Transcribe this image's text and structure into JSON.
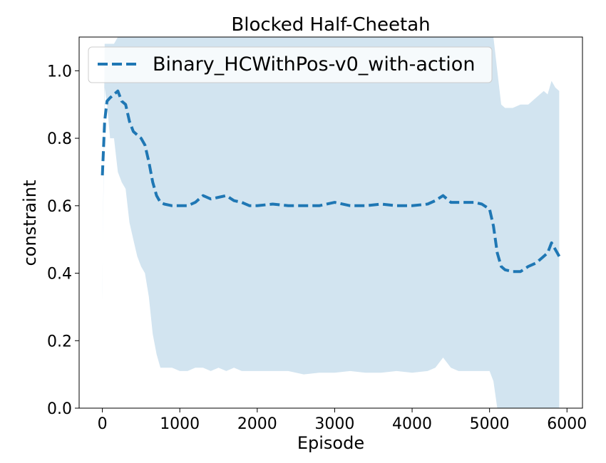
{
  "chart_data": {
    "type": "line",
    "title": "Blocked Half-Cheetah",
    "xlabel": "Episode",
    "ylabel": "constraint",
    "xlim": [
      -300,
      6200
    ],
    "ylim": [
      0.0,
      1.1
    ],
    "xticks": [
      0,
      1000,
      2000,
      3000,
      4000,
      5000,
      6000
    ],
    "xtick_labels": [
      "0",
      "1000",
      "2000",
      "3000",
      "4000",
      "5000",
      "6000"
    ],
    "yticks": [
      0.0,
      0.2,
      0.4,
      0.6,
      0.8,
      1.0
    ],
    "ytick_labels": [
      "0.0",
      "0.2",
      "0.4",
      "0.6",
      "0.8",
      "1.0"
    ],
    "grid": false,
    "legend_position": "top-left",
    "colors": {
      "line": "#1f77b4",
      "band": "#1f77b4"
    },
    "series": [
      {
        "name": "Binary_HCWithPos-v0_with-action",
        "style": "dashed",
        "x": [
          0,
          30,
          60,
          100,
          150,
          200,
          250,
          300,
          350,
          400,
          450,
          500,
          550,
          600,
          650,
          700,
          750,
          800,
          900,
          1000,
          1100,
          1200,
          1300,
          1400,
          1500,
          1600,
          1700,
          1800,
          1900,
          2000,
          2200,
          2400,
          2600,
          2800,
          3000,
          3200,
          3400,
          3600,
          3800,
          4000,
          4200,
          4300,
          4400,
          4500,
          4600,
          4700,
          4800,
          4900,
          5000,
          5050,
          5100,
          5150,
          5200,
          5300,
          5400,
          5500,
          5600,
          5700,
          5750,
          5800,
          5850,
          5900
        ],
        "y": [
          0.69,
          0.85,
          0.91,
          0.92,
          0.93,
          0.94,
          0.91,
          0.9,
          0.85,
          0.82,
          0.81,
          0.8,
          0.78,
          0.73,
          0.67,
          0.63,
          0.61,
          0.605,
          0.6,
          0.6,
          0.6,
          0.61,
          0.63,
          0.62,
          0.625,
          0.63,
          0.615,
          0.61,
          0.6,
          0.6,
          0.605,
          0.6,
          0.6,
          0.6,
          0.61,
          0.6,
          0.6,
          0.605,
          0.6,
          0.6,
          0.605,
          0.615,
          0.63,
          0.61,
          0.61,
          0.61,
          0.61,
          0.605,
          0.59,
          0.54,
          0.46,
          0.42,
          0.41,
          0.405,
          0.405,
          0.42,
          0.43,
          0.45,
          0.46,
          0.49,
          0.47,
          0.45
        ],
        "band_upper": [
          0.32,
          1.08,
          1.08,
          1.08,
          1.08,
          1.1,
          1.1,
          1.1,
          1.1,
          1.1,
          1.1,
          1.1,
          1.1,
          1.1,
          1.1,
          1.1,
          1.1,
          1.1,
          1.1,
          1.1,
          1.1,
          1.1,
          1.1,
          1.1,
          1.1,
          1.1,
          1.1,
          1.1,
          1.1,
          1.1,
          1.1,
          1.1,
          1.1,
          1.1,
          1.1,
          1.1,
          1.1,
          1.1,
          1.1,
          1.1,
          1.1,
          1.1,
          1.1,
          1.1,
          1.1,
          1.1,
          1.1,
          1.1,
          1.1,
          1.1,
          1.0,
          0.9,
          0.89,
          0.89,
          0.9,
          0.9,
          0.92,
          0.94,
          0.93,
          0.97,
          0.95,
          0.94
        ],
        "band_lower": [
          0.35,
          0.95,
          0.9,
          0.8,
          0.8,
          0.7,
          0.67,
          0.65,
          0.55,
          0.5,
          0.45,
          0.42,
          0.4,
          0.33,
          0.22,
          0.16,
          0.12,
          0.12,
          0.12,
          0.11,
          0.11,
          0.12,
          0.12,
          0.11,
          0.12,
          0.11,
          0.12,
          0.11,
          0.11,
          0.11,
          0.11,
          0.11,
          0.1,
          0.105,
          0.105,
          0.11,
          0.105,
          0.105,
          0.11,
          0.105,
          0.11,
          0.12,
          0.15,
          0.12,
          0.11,
          0.11,
          0.11,
          0.11,
          0.11,
          0.08,
          0.0,
          0.0,
          0.0,
          0.0,
          0.0,
          0.0,
          0.0,
          0.0,
          0.0,
          0.0,
          0.0,
          0.0
        ]
      }
    ]
  }
}
